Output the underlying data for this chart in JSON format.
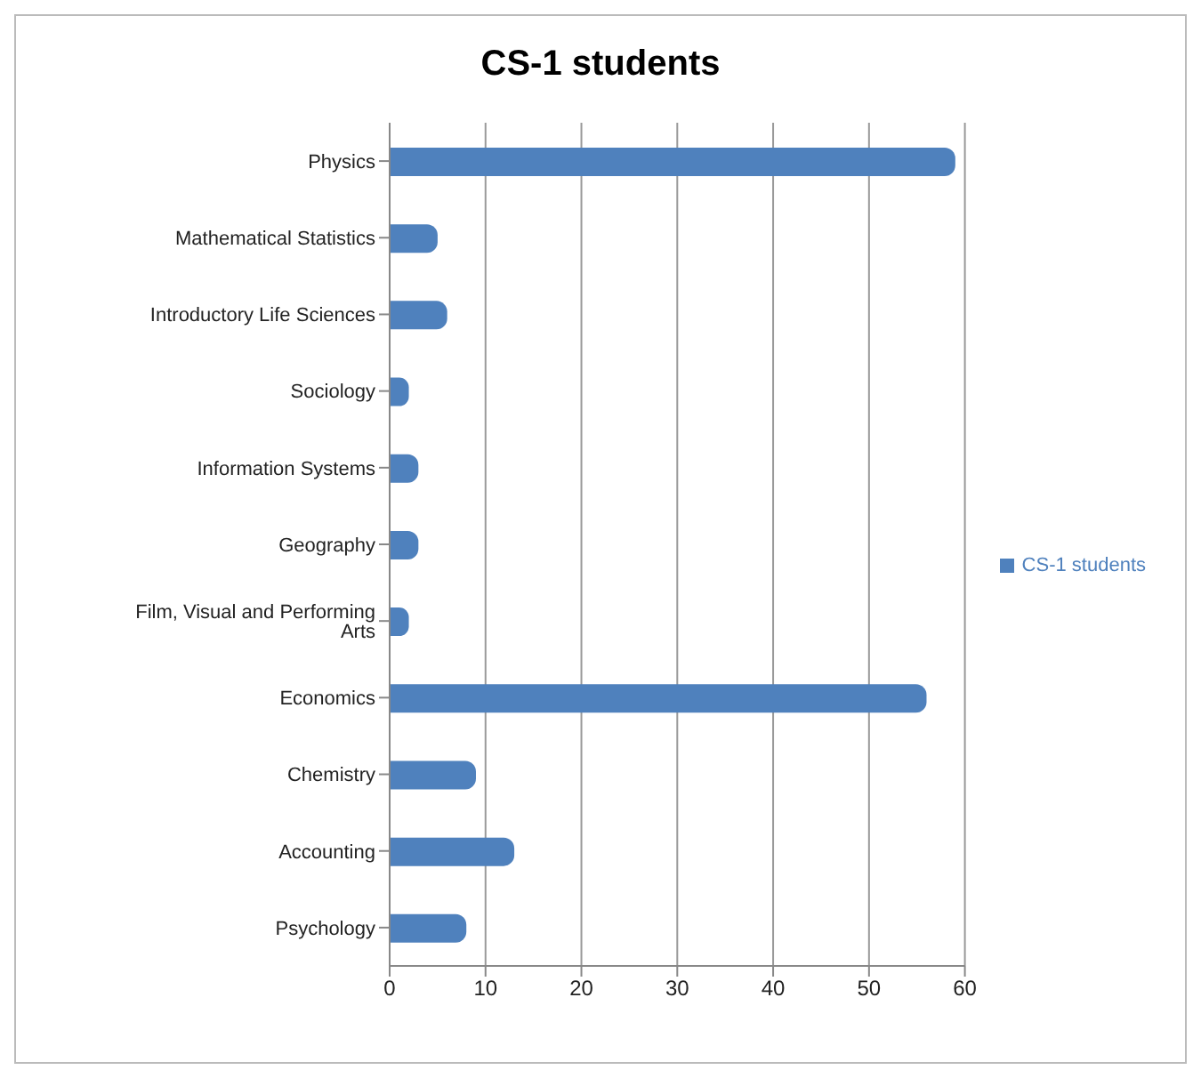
{
  "chart_data": {
    "type": "bar",
    "orientation": "horizontal",
    "title": "CS-1 students",
    "categories": [
      "Physics",
      "Mathematical Statistics",
      "Introductory Life Sciences",
      "Sociology",
      "Information Systems",
      "Geography",
      "Film, Visual and Performing Arts",
      "Economics",
      "Chemistry",
      "Accounting",
      "Psychology"
    ],
    "series": [
      {
        "name": "CS-1 students",
        "color": "#4f81bd",
        "values": [
          59,
          5,
          6,
          2,
          3,
          3,
          2,
          56,
          9,
          13,
          8
        ]
      }
    ],
    "xlim": [
      0,
      60
    ],
    "xticks": [
      0,
      10,
      20,
      30,
      40,
      50,
      60
    ],
    "grid": "x",
    "legend": "right"
  }
}
